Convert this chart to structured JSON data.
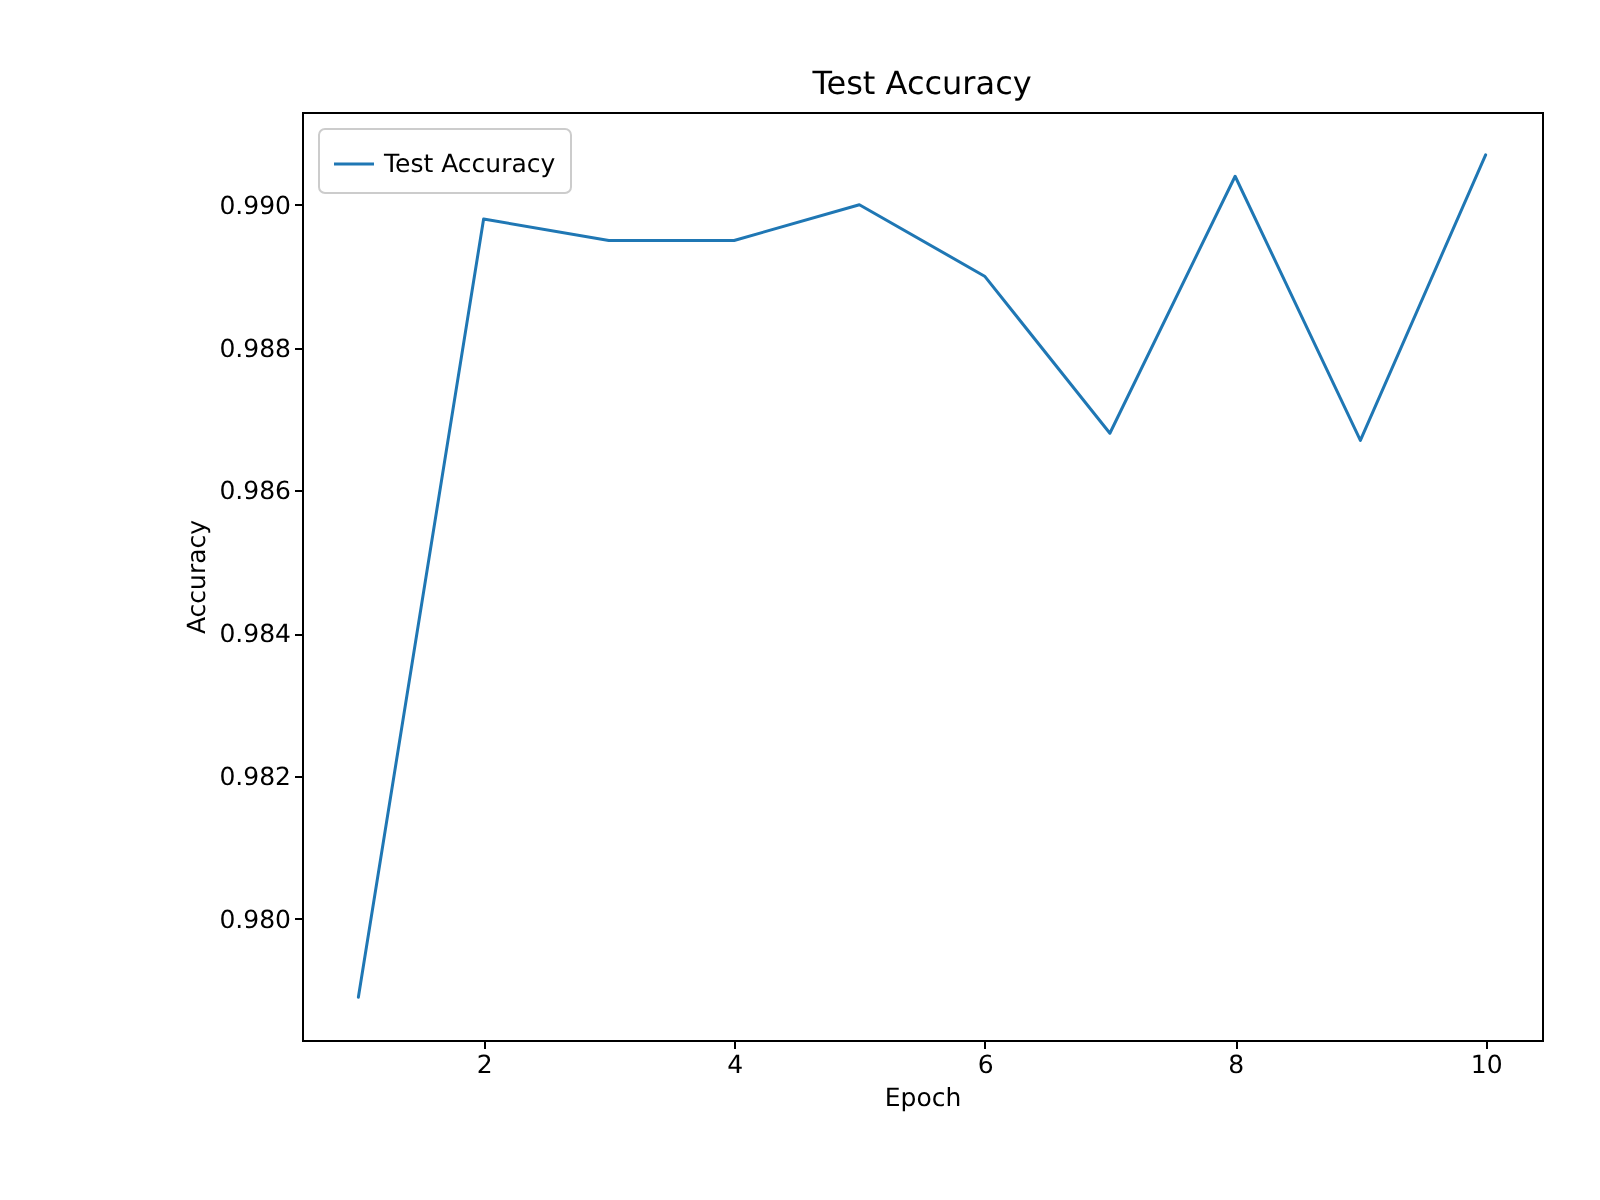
{
  "chart_data": {
    "type": "line",
    "title": "Test Accuracy",
    "xlabel": "Epoch",
    "ylabel": "Accuracy",
    "x": [
      1,
      2,
      3,
      4,
      5,
      6,
      7,
      8,
      9,
      10
    ],
    "series": [
      {
        "name": "Test Accuracy",
        "color": "#1f77b4",
        "values": [
          0.9789,
          0.9898,
          0.9895,
          0.9895,
          0.99,
          0.989,
          0.9868,
          0.9904,
          0.9867,
          0.9907
        ]
      }
    ],
    "xlim": [
      0.55,
      10.45
    ],
    "xticks": [
      2,
      4,
      6,
      8,
      10
    ],
    "ylim": [
      0.9783,
      0.9913
    ],
    "yticks": [
      {
        "value": 0.98,
        "label": "0.980"
      },
      {
        "value": 0.982,
        "label": "0.982"
      },
      {
        "value": 0.984,
        "label": "0.984"
      },
      {
        "value": 0.986,
        "label": "0.986"
      },
      {
        "value": 0.988,
        "label": "0.988"
      },
      {
        "value": 0.99,
        "label": "0.990"
      }
    ],
    "grid": false,
    "legend": "top left",
    "marker": "none",
    "line_style": "solid"
  }
}
